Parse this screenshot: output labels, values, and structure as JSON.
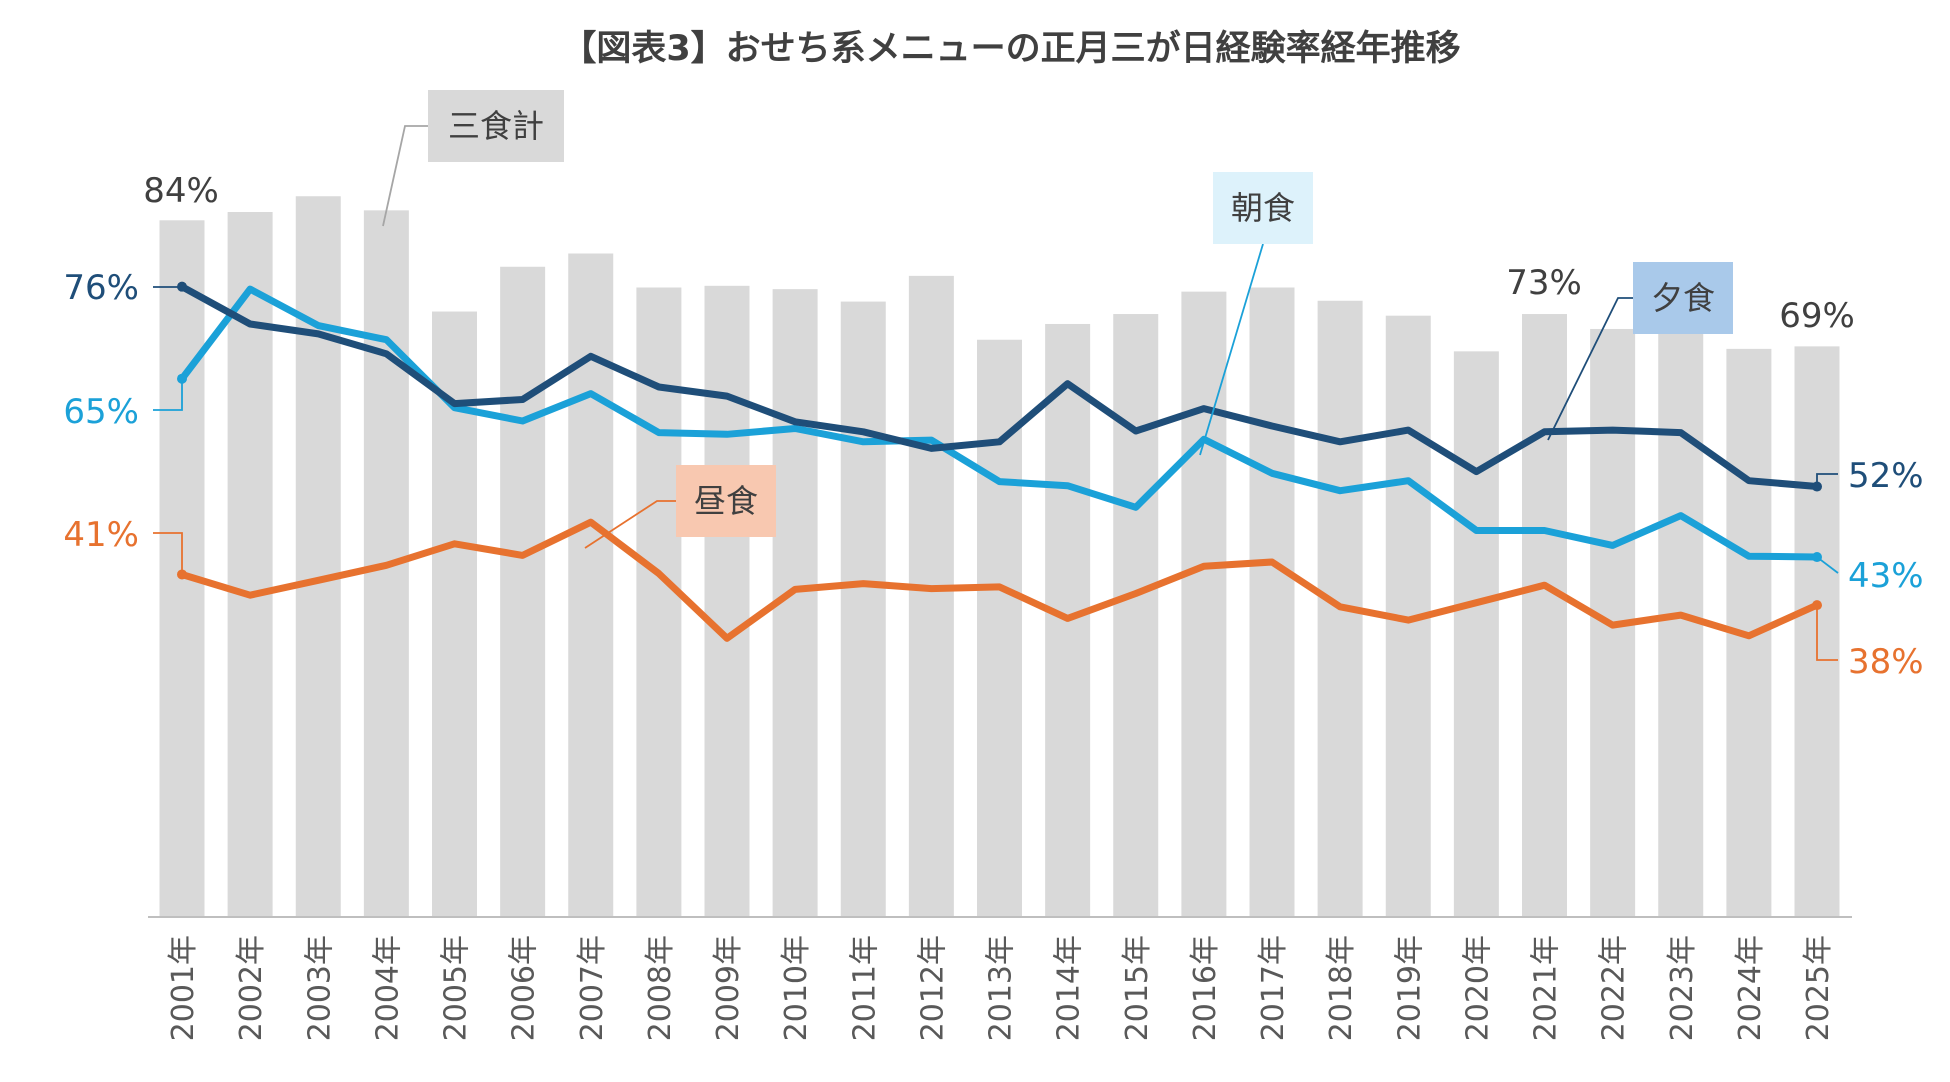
{
  "chart_data": {
    "type": "bar+line",
    "title": "【図表3】おせち系メニューの正月三が日経験率経年推移",
    "categories": [
      "2001年",
      "2002年",
      "2003年",
      "2004年",
      "2005年",
      "2006年",
      "2007年",
      "2008年",
      "2009年",
      "2010年",
      "2011年",
      "2012年",
      "2013年",
      "2014年",
      "2015年",
      "2016年",
      "2017年",
      "2018年",
      "2019年",
      "2020年",
      "2021年",
      "2022年",
      "2023年",
      "2024年",
      "2025年"
    ],
    "ylim": [
      0,
      100
    ],
    "grid": false,
    "series": [
      {
        "name": "三食計",
        "kind": "bar",
        "color": "#d9d9d9",
        "values": [
          84,
          85,
          86.9,
          85.2,
          73,
          78.4,
          80,
          75.9,
          76.1,
          75.7,
          74.2,
          77.3,
          69.6,
          71.5,
          72.7,
          75.4,
          75.9,
          74.3,
          72.5,
          68.2,
          72.7,
          70.9,
          71.4,
          68.5,
          68.8
        ]
      },
      {
        "name": "朝食",
        "kind": "line",
        "color": "#1ba1d8",
        "values": [
          64.9,
          75.7,
          71.3,
          69.6,
          61.4,
          59.8,
          63.1,
          58.4,
          58.2,
          58.9,
          57.3,
          57.5,
          52.5,
          52,
          49.4,
          57.6,
          53.5,
          51.4,
          52.6,
          46.6,
          46.6,
          44.8,
          48.4,
          43.5,
          43.4
        ]
      },
      {
        "name": "昼食",
        "kind": "line",
        "color": "#e7722f",
        "values": [
          41.3,
          38.8,
          40.6,
          42.4,
          45,
          43.6,
          47.6,
          41.4,
          33.6,
          39.5,
          40.2,
          39.6,
          39.8,
          36,
          39,
          42.3,
          42.8,
          37.4,
          35.8,
          37.9,
          40,
          35.2,
          36.4,
          33.9,
          37.6
        ]
      },
      {
        "name": "夕食",
        "kind": "line",
        "color": "#1f4e79",
        "values": [
          76,
          71.5,
          70.3,
          67.9,
          61.9,
          62.4,
          67.6,
          63.9,
          62.8,
          59.7,
          58.5,
          56.5,
          57.3,
          64.3,
          58.6,
          61.3,
          59.2,
          57.3,
          58.7,
          53.7,
          58.5,
          58.7,
          58.4,
          52.6,
          51.9
        ]
      }
    ],
    "data_labels": {
      "bar_first": "84%",
      "bar_2021": "73%",
      "bar_last": "69%",
      "breakfast_first": "65%",
      "breakfast_last": "43%",
      "lunch_first": "41%",
      "lunch_last": "38%",
      "dinner_first": "76%",
      "dinner_last": "52%"
    },
    "callouts": {
      "total": "三食計",
      "breakfast": "朝食",
      "lunch": "昼食",
      "dinner": "夕食"
    },
    "callout_colors": {
      "total": "#d9d9d9",
      "breakfast": "#ddf2fb",
      "lunch": "#f8c8b0",
      "dinner": "#a9c9ea"
    }
  }
}
